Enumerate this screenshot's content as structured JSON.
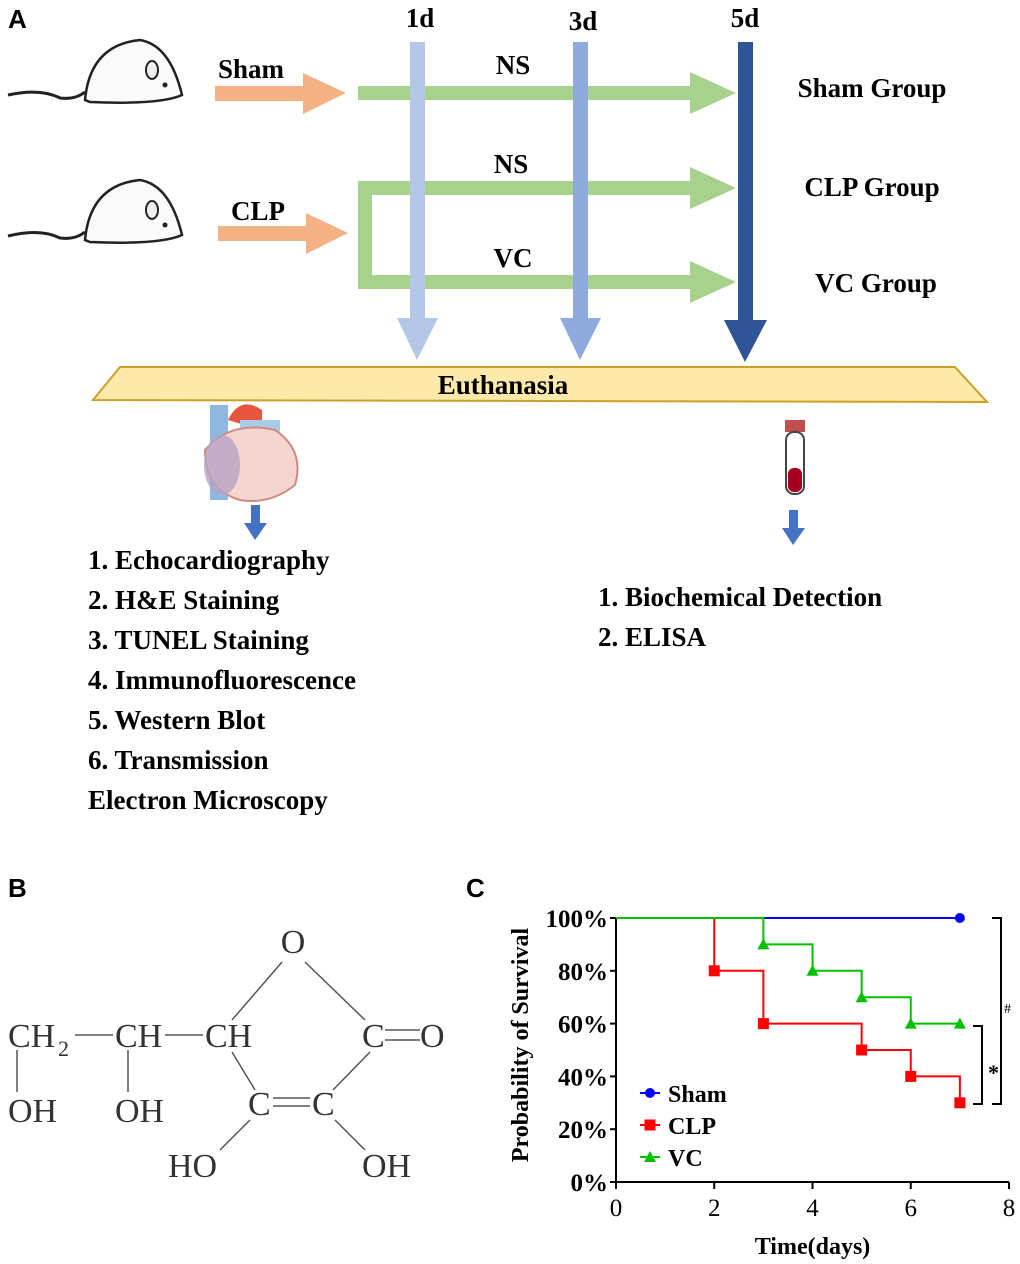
{
  "panels": {
    "a": "A",
    "b": "B",
    "c": "C"
  },
  "timeline": {
    "d1": "1d",
    "d3": "3d",
    "d5": "5d"
  },
  "arrows": {
    "sham": "Sham",
    "clp": "CLP",
    "ns1": "NS",
    "ns2": "NS",
    "vc": "VC"
  },
  "groups": [
    "Sham Group",
    "CLP  Group",
    "VC  Group"
  ],
  "euthanasia": "Euthanasia",
  "heart_list": [
    "1. Echocardiography",
    "2. H&E Staining",
    "3. TUNEL Staining",
    "4. Immunofluorescence",
    "5. Western Blot",
    "6. Transmission",
    "Electron Microscopy"
  ],
  "blood_list": [
    "1. Biochemical  Detection",
    "2. ELISA"
  ],
  "colors": {
    "orange": "#f4b183",
    "green": "#a9d18e",
    "d1": "#b4c7e7",
    "d3": "#8faadc",
    "d5": "#2f5597",
    "euth_fill": "#fde9a9",
    "euth_stroke": "#c9a227"
  },
  "structure": {
    "o_ring": "O",
    "ch2": "CH",
    "ch2_sub": "2",
    "ch_a": "CH",
    "ch_b": "CH",
    "co": "C",
    "co_o": "O",
    "oh1": "OH",
    "oh2": "OH",
    "c1": "C",
    "c2": "C",
    "ho": "HO",
    "oh3": "OH"
  },
  "chart_data": {
    "type": "line",
    "title": "",
    "xlabel": "Time(days)",
    "ylabel": "Probability of Survival",
    "xlim": [
      0,
      8
    ],
    "ylim": [
      0,
      100
    ],
    "xticks": [
      "0",
      "2",
      "4",
      "6",
      "8"
    ],
    "yticks": [
      "0%",
      "20%",
      "40%",
      "60%",
      "80%",
      "100%"
    ],
    "legend_position": "bottom-left",
    "series": [
      {
        "name": "Sham",
        "color": "#0000ff",
        "marker": "circle",
        "steps": [
          [
            0,
            100
          ],
          [
            7,
            100
          ]
        ],
        "markers": [
          [
            7,
            100
          ]
        ]
      },
      {
        "name": "CLP",
        "color": "#ff0000",
        "marker": "square",
        "steps": [
          [
            0,
            100
          ],
          [
            2,
            80
          ],
          [
            3,
            60
          ],
          [
            5,
            50
          ],
          [
            6,
            40
          ],
          [
            7,
            30
          ]
        ],
        "markers": [
          [
            2,
            80
          ],
          [
            3,
            60
          ],
          [
            5,
            50
          ],
          [
            6,
            40
          ],
          [
            7,
            30
          ]
        ]
      },
      {
        "name": "VC",
        "color": "#00c000",
        "marker": "triangle",
        "steps": [
          [
            0,
            100
          ],
          [
            3,
            90
          ],
          [
            4,
            80
          ],
          [
            5,
            70
          ],
          [
            6,
            60
          ],
          [
            7,
            60
          ]
        ],
        "markers": [
          [
            3,
            90
          ],
          [
            4,
            80
          ],
          [
            5,
            70
          ],
          [
            6,
            60
          ],
          [
            7,
            60
          ]
        ]
      }
    ],
    "annotations": [
      "*",
      "#"
    ]
  }
}
